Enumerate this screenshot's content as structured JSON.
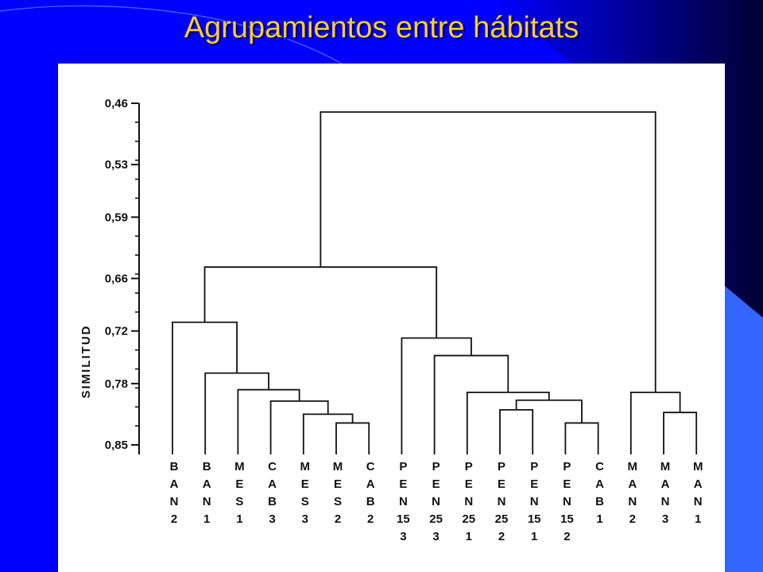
{
  "slide": {
    "title": "Agrupamientos entre hábitats",
    "colors": {
      "background": "#0000ff",
      "title": "#ffcc33",
      "accent": "#3366ff",
      "panel": "#ffffff"
    }
  },
  "dendrogram": {
    "axis_label": "SIMILITUD",
    "axis_range": [
      0.46,
      0.85
    ],
    "ticks": [
      {
        "value": 0.46,
        "label": "0,46"
      },
      {
        "value": 0.53,
        "label": "0,53"
      },
      {
        "value": 0.59,
        "label": "0,59"
      },
      {
        "value": 0.66,
        "label": "0,66"
      },
      {
        "value": 0.72,
        "label": "0,72"
      },
      {
        "value": 0.78,
        "label": "0,78"
      },
      {
        "value": 0.85,
        "label": "0,85"
      }
    ],
    "leaves": [
      {
        "id": "BAN2",
        "lines": [
          "B",
          "A",
          "N",
          "2"
        ]
      },
      {
        "id": "BAN1",
        "lines": [
          "B",
          "A",
          "N",
          "1"
        ]
      },
      {
        "id": "MES1",
        "lines": [
          "M",
          "E",
          "S",
          "1"
        ]
      },
      {
        "id": "CAB3",
        "lines": [
          "C",
          "A",
          "B",
          "3"
        ]
      },
      {
        "id": "MES3",
        "lines": [
          "M",
          "E",
          "S",
          "3"
        ]
      },
      {
        "id": "MES2",
        "lines": [
          "M",
          "E",
          "S",
          "2"
        ]
      },
      {
        "id": "CAB2",
        "lines": [
          "C",
          "A",
          "B",
          "2"
        ]
      },
      {
        "id": "PEN153",
        "lines": [
          "P",
          "E",
          "N",
          "15",
          "3"
        ]
      },
      {
        "id": "PEN253",
        "lines": [
          "P",
          "E",
          "N",
          "25",
          "3"
        ]
      },
      {
        "id": "PEN251",
        "lines": [
          "P",
          "E",
          "N",
          "25",
          "1"
        ]
      },
      {
        "id": "PEN252",
        "lines": [
          "P",
          "E",
          "N",
          "25",
          "2"
        ]
      },
      {
        "id": "PEN151",
        "lines": [
          "P",
          "E",
          "N",
          "15",
          "1"
        ]
      },
      {
        "id": "PEN152",
        "lines": [
          "P",
          "E",
          "N",
          "15",
          "2"
        ]
      },
      {
        "id": "CAB1",
        "lines": [
          "C",
          "A",
          "B",
          "1"
        ]
      },
      {
        "id": "MAN2",
        "lines": [
          "M",
          "A",
          "N",
          "2"
        ]
      },
      {
        "id": "MAN3",
        "lines": [
          "M",
          "A",
          "N",
          "3"
        ]
      },
      {
        "id": "MAN1",
        "lines": [
          "M",
          "A",
          "N",
          "1"
        ]
      }
    ],
    "merges": [
      {
        "id": "m1",
        "children": [
          "MES2",
          "CAB2"
        ],
        "similarity": 0.825
      },
      {
        "id": "m2",
        "children": [
          "MES3",
          "m1"
        ],
        "similarity": 0.815
      },
      {
        "id": "m3",
        "children": [
          "CAB3",
          "m2"
        ],
        "similarity": 0.8
      },
      {
        "id": "m4",
        "children": [
          "MES1",
          "m3"
        ],
        "similarity": 0.787
      },
      {
        "id": "m5",
        "children": [
          "BAN1",
          "m4"
        ],
        "similarity": 0.768
      },
      {
        "id": "m6",
        "children": [
          "BAN2",
          "m5"
        ],
        "similarity": 0.71
      },
      {
        "id": "m7",
        "children": [
          "PEN252",
          "PEN151"
        ],
        "similarity": 0.81
      },
      {
        "id": "m8",
        "children": [
          "PEN152",
          "CAB1"
        ],
        "similarity": 0.825
      },
      {
        "id": "m9",
        "children": [
          "m7",
          "m8"
        ],
        "similarity": 0.799
      },
      {
        "id": "m10",
        "children": [
          "PEN251",
          "m9"
        ],
        "similarity": 0.79
      },
      {
        "id": "m11",
        "children": [
          "PEN253",
          "m10"
        ],
        "similarity": 0.748
      },
      {
        "id": "m12",
        "children": [
          "PEN153",
          "m11"
        ],
        "similarity": 0.728
      },
      {
        "id": "m13",
        "children": [
          "m6",
          "m12"
        ],
        "similarity": 0.647
      },
      {
        "id": "m14",
        "children": [
          "MAN3",
          "MAN1"
        ],
        "similarity": 0.813
      },
      {
        "id": "m15",
        "children": [
          "MAN2",
          "m14"
        ],
        "similarity": 0.79
      },
      {
        "id": "m16",
        "children": [
          "m13",
          "m15"
        ],
        "similarity": 0.47
      }
    ]
  }
}
